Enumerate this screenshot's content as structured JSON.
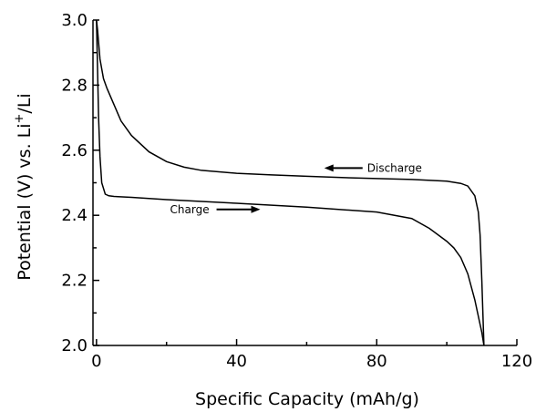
{
  "chart_data": {
    "type": "line",
    "title": "",
    "xlabel": "Specific Capacity (mAh/g)",
    "ylabel_parts": {
      "main": "Potential (V) vs. Li",
      "superscript": "+",
      "suffix": "/Li"
    },
    "xlim": [
      -1,
      120
    ],
    "ylim": [
      2.0,
      3.0
    ],
    "xticks": [
      "0",
      "40",
      "80",
      "120"
    ],
    "xtick_values": [
      0,
      40,
      80,
      120
    ],
    "yticks": [
      "2.0",
      "2.2",
      "2.4",
      "2.6",
      "2.8",
      "3.0"
    ],
    "ytick_values": [
      2.0,
      2.2,
      2.4,
      2.6,
      2.8,
      3.0
    ],
    "minor_ticks": true,
    "grid": false,
    "series": [
      {
        "name": "Discharge",
        "x": [
          0,
          0.3,
          1,
          2,
          3,
          5,
          7,
          10,
          15,
          20,
          25,
          30,
          40,
          50,
          60,
          70,
          80,
          90,
          100,
          104,
          106,
          108,
          109,
          109.5,
          110,
          110.3,
          110.6
        ],
        "y": [
          3.0,
          2.97,
          2.88,
          2.82,
          2.79,
          2.74,
          2.69,
          2.645,
          2.595,
          2.565,
          2.548,
          2.538,
          2.529,
          2.524,
          2.52,
          2.516,
          2.513,
          2.51,
          2.505,
          2.498,
          2.49,
          2.46,
          2.41,
          2.34,
          2.2,
          2.1,
          2.0
        ]
      },
      {
        "name": "Charge",
        "x": [
          110.6,
          110,
          108,
          106,
          104,
          102,
          100,
          95,
          90,
          80,
          60,
          40,
          20,
          10,
          5,
          3.5,
          2.5,
          1.5,
          1,
          0.6,
          0.3,
          0
        ],
        "y": [
          2.0,
          2.04,
          2.14,
          2.22,
          2.27,
          2.3,
          2.32,
          2.36,
          2.39,
          2.41,
          2.425,
          2.437,
          2.448,
          2.455,
          2.458,
          2.46,
          2.465,
          2.5,
          2.58,
          2.7,
          2.85,
          3.0
        ]
      }
    ],
    "annotations": [
      {
        "text": "Discharge",
        "x": 77,
        "y": 2.545,
        "arrow": "left"
      },
      {
        "text": "Charge",
        "x": 21,
        "y": 2.418,
        "arrow": "right"
      }
    ]
  }
}
